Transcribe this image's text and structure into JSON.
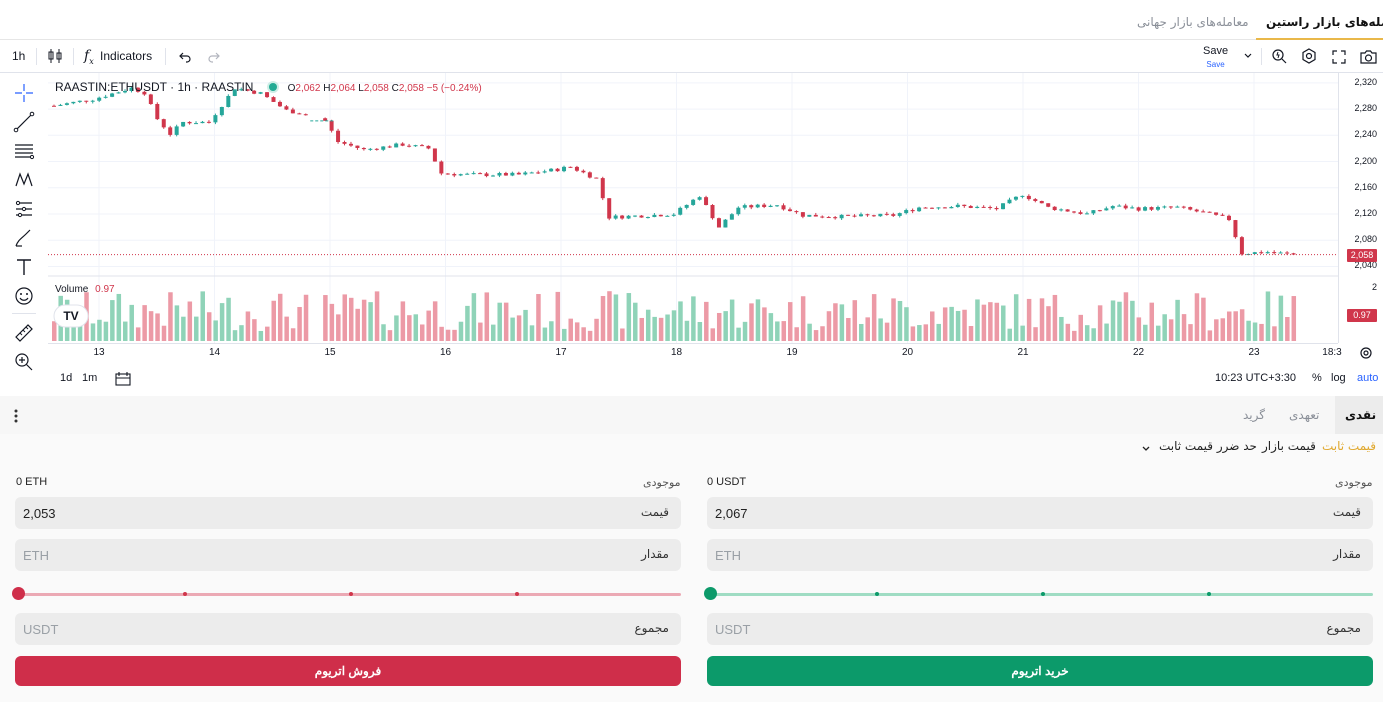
{
  "market_tabs": {
    "raastin": "معامله‌های بازار راستین",
    "global": "معامله‌های بازار جهانی"
  },
  "toolbar": {
    "interval": "1h",
    "indicators_label": "Indicators",
    "save_label": "Save",
    "save_sub": "Save"
  },
  "legend": {
    "symbol": "RAASTIN:ETHUSDT · 1h · RAASTIN",
    "o_label": "O",
    "o": "2,062",
    "h_label": "H",
    "h": "2,064",
    "l_label": "L",
    "l": "2,058",
    "c_label": "C",
    "c": "2,058",
    "change": "−5 (−0.24%)",
    "volume_label": "Volume",
    "volume_value": "0.97"
  },
  "price_axis": {
    "ticks": [
      "2,320",
      "2,280",
      "2,240",
      "2,200",
      "2,160",
      "2,120",
      "2,080",
      "2,040"
    ],
    "current_price": "2,058",
    "volume_tick": "2",
    "volume_badge": "0.97"
  },
  "time_axis": {
    "ticks": [
      "13",
      "14",
      "15",
      "16",
      "17",
      "18",
      "19",
      "20",
      "21",
      "22",
      "23"
    ],
    "end_label": "18:3"
  },
  "bottom_bar": {
    "ranges": [
      "1d",
      "1m"
    ],
    "clock": "10:23 UTC+3:30",
    "percent": "%",
    "log": "log",
    "auto": "auto"
  },
  "colors": {
    "up": "#26a69a",
    "down": "#d0364b",
    "vol_up": "#8fd3b8",
    "vol_down": "#ec9aa6",
    "buy": "#0c9a6a",
    "sell": "#cf2e4a",
    "accent": "#e0a82e"
  },
  "chart_data": {
    "type": "candlestick",
    "symbol": "RAASTIN:ETHUSDT",
    "interval": "1h",
    "x_ticks": [
      "13",
      "14",
      "15",
      "16",
      "17",
      "18",
      "19",
      "20",
      "21",
      "22",
      "23"
    ],
    "ylim": [
      2030,
      2335
    ],
    "close_path": [
      [
        0,
        2285
      ],
      [
        6,
        2295
      ],
      [
        12,
        2312
      ],
      [
        14,
        2305
      ],
      [
        16,
        2265
      ],
      [
        18,
        2242
      ],
      [
        20,
        2260
      ],
      [
        24,
        2260
      ],
      [
        28,
        2312
      ],
      [
        32,
        2304
      ],
      [
        36,
        2278
      ],
      [
        40,
        2270
      ],
      [
        42,
        2262
      ],
      [
        44,
        2230
      ],
      [
        48,
        2218
      ],
      [
        54,
        2226
      ],
      [
        58,
        2220
      ],
      [
        60,
        2182
      ],
      [
        64,
        2180
      ],
      [
        72,
        2180
      ],
      [
        78,
        2188
      ],
      [
        80,
        2192
      ],
      [
        84,
        2174
      ],
      [
        86,
        2115
      ],
      [
        92,
        2118
      ],
      [
        96,
        2120
      ],
      [
        100,
        2148
      ],
      [
        103,
        2100
      ],
      [
        106,
        2130
      ],
      [
        112,
        2134
      ],
      [
        116,
        2118
      ],
      [
        122,
        2116
      ],
      [
        130,
        2118
      ],
      [
        134,
        2130
      ],
      [
        140,
        2132
      ],
      [
        146,
        2128
      ],
      [
        150,
        2150
      ],
      [
        154,
        2130
      ],
      [
        160,
        2120
      ],
      [
        164,
        2132
      ],
      [
        168,
        2128
      ],
      [
        174,
        2130
      ],
      [
        178,
        2122
      ],
      [
        182,
        2112
      ],
      [
        184,
        2060
      ],
      [
        188,
        2062
      ],
      [
        192,
        2058
      ]
    ],
    "volume_last": 0.97,
    "last_close": 2058
  },
  "order": {
    "tabs": [
      "نقدی",
      "تعهدی",
      "گرید"
    ],
    "types": {
      "limit": "قیمت ثابت",
      "market": "قیمت بازار",
      "stop_limit": "حد ضرر قیمت ثابت"
    },
    "buy": {
      "balance_label": "موجودی",
      "balance_value": "0 USDT",
      "price_label": "قیمت",
      "price_value": "2,067",
      "amount_label": "مقدار",
      "amount_placeholder": "ETH",
      "total_label": "مجموع",
      "total_placeholder": "USDT",
      "slider_percent": 0,
      "button": "خرید اتریوم"
    },
    "sell": {
      "balance_label": "موجودی",
      "balance_value": "0 ETH",
      "price_label": "قیمت",
      "price_value": "2,053",
      "amount_label": "مقدار",
      "amount_placeholder": "ETH",
      "total_label": "مجموع",
      "total_placeholder": "USDT",
      "slider_percent": 0,
      "button": "فروش اتریوم"
    }
  }
}
